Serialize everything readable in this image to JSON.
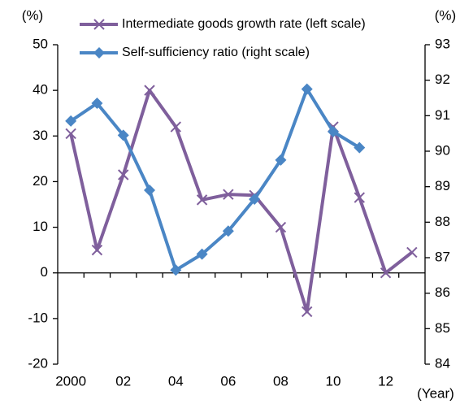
{
  "chart_data": {
    "type": "line",
    "y_label": "(%)",
    "y2_label": "(%)",
    "x_label": "(Year)",
    "categories": [
      "2000",
      null,
      "02",
      null,
      "04",
      null,
      "06",
      null,
      "08",
      null,
      "10",
      null,
      "12",
      null
    ],
    "series": [
      {
        "name": "Intermediate goods growth rate (left scale)",
        "color": "#7f5f9c",
        "marker": "x",
        "values": [
          30.5,
          5,
          21.5,
          40,
          32,
          16,
          17.2,
          17,
          10,
          -8.5,
          32,
          16.5,
          0,
          4.5
        ]
      },
      {
        "name": "Self-sufficiency ratio (right scale)",
        "color": "#4a86c5",
        "marker": "diamond",
        "axis": "y2",
        "values": [
          90.85,
          91.35,
          90.45,
          88.9,
          86.65,
          87.1,
          87.75,
          88.65,
          89.75,
          91.75,
          90.55,
          90.1,
          null,
          null
        ]
      }
    ],
    "ylim": [
      -20,
      50
    ],
    "yticks": [
      -20,
      -10,
      0,
      10,
      20,
      30,
      40,
      50
    ],
    "y2lim": [
      84,
      93
    ],
    "y2ticks": [
      84,
      85,
      86,
      87,
      88,
      89,
      90,
      91,
      92,
      93
    ],
    "grid": false
  }
}
